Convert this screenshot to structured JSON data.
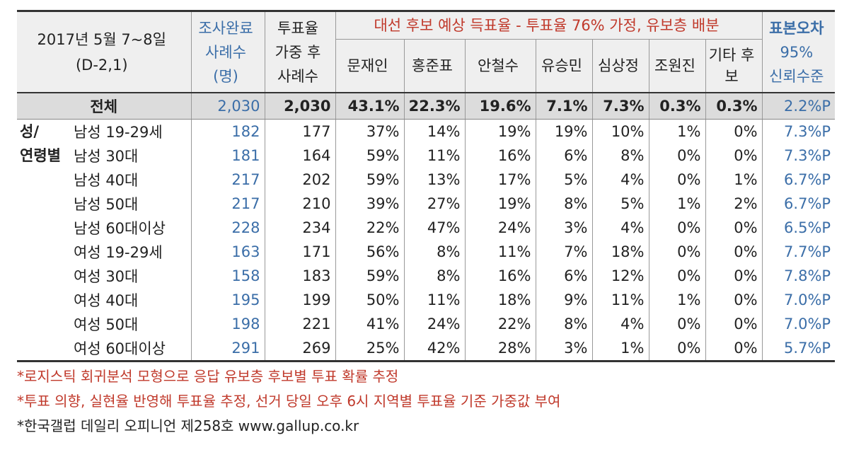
{
  "header": {
    "period_line1": "2017년 5월 7~8일",
    "period_line2": "(D-2,1)",
    "n_head": [
      "조사완료",
      "사례수",
      "(명)"
    ],
    "weighted_head": [
      "투표율",
      "가중 후",
      "사례수"
    ],
    "forecast_title": "대선 후보 예상 득표율 - 투표율 76% 가정, 유보층 배분",
    "candidates": [
      "문재인",
      "홍준표",
      "안철수",
      "유승민",
      "심상정",
      "조원진",
      "기타 후보"
    ],
    "error_head": [
      "표본오차",
      "95%",
      "신뢰수준"
    ]
  },
  "chart_data": {
    "type": "table",
    "columns": [
      "조사완료 사례수 (명)",
      "투표율 가중 후 사례수",
      "문재인",
      "홍준표",
      "안철수",
      "유승민",
      "심상정",
      "조원진",
      "기타 후보",
      "표본오차 95% 신뢰수준"
    ],
    "total": {
      "label": "전체",
      "cells": [
        "2,030",
        "2,030",
        "43.1%",
        "22.3%",
        "19.6%",
        "7.1%",
        "7.3%",
        "0.3%",
        "0.3%",
        "2.2%P"
      ]
    },
    "group_label": [
      "성/",
      "연령별"
    ],
    "rows": [
      {
        "label": "남성 19-29세",
        "cells": [
          "182",
          "177",
          "37%",
          "14%",
          "19%",
          "19%",
          "10%",
          "1%",
          "0%",
          "7.3%P"
        ]
      },
      {
        "label": "남성 30대",
        "cells": [
          "181",
          "164",
          "59%",
          "11%",
          "16%",
          "6%",
          "8%",
          "0%",
          "0%",
          "7.3%P"
        ]
      },
      {
        "label": "남성 40대",
        "cells": [
          "217",
          "202",
          "59%",
          "13%",
          "17%",
          "5%",
          "4%",
          "0%",
          "1%",
          "6.7%P"
        ]
      },
      {
        "label": "남성 50대",
        "cells": [
          "217",
          "210",
          "39%",
          "27%",
          "19%",
          "8%",
          "5%",
          "1%",
          "2%",
          "6.7%P"
        ]
      },
      {
        "label": "남성 60대이상",
        "cells": [
          "228",
          "234",
          "22%",
          "47%",
          "24%",
          "3%",
          "4%",
          "0%",
          "0%",
          "6.5%P"
        ]
      },
      {
        "label": "여성 19-29세",
        "cells": [
          "163",
          "171",
          "56%",
          "8%",
          "11%",
          "7%",
          "18%",
          "0%",
          "0%",
          "7.7%P"
        ]
      },
      {
        "label": "여성 30대",
        "cells": [
          "158",
          "183",
          "59%",
          "8%",
          "16%",
          "6%",
          "12%",
          "0%",
          "0%",
          "7.8%P"
        ]
      },
      {
        "label": "여성 40대",
        "cells": [
          "195",
          "199",
          "50%",
          "11%",
          "18%",
          "9%",
          "11%",
          "1%",
          "0%",
          "7.0%P"
        ]
      },
      {
        "label": "여성 50대",
        "cells": [
          "198",
          "221",
          "41%",
          "24%",
          "22%",
          "8%",
          "4%",
          "0%",
          "0%",
          "7.0%P"
        ]
      },
      {
        "label": "여성 60대이상",
        "cells": [
          "291",
          "269",
          "25%",
          "42%",
          "28%",
          "3%",
          "1%",
          "0%",
          "0%",
          "5.7%P"
        ]
      }
    ]
  },
  "notes": [
    "*로지스틱 회귀분석 모형으로 응답 유보층 후보별 투표 확률 추정",
    "*투표 의향, 실현율 반영해 투표율 추정, 선거 당일 오후 6시 지역별 투표율 기준 가중값 부여",
    "*한국갤럽 데일리 오피니언 제258호 www.gallup.co.kr"
  ],
  "colors": {
    "blue": "#3b6ea8",
    "red": "#c0392b",
    "header_bg": "#efefef",
    "total_bg": "#dcdcdc"
  }
}
